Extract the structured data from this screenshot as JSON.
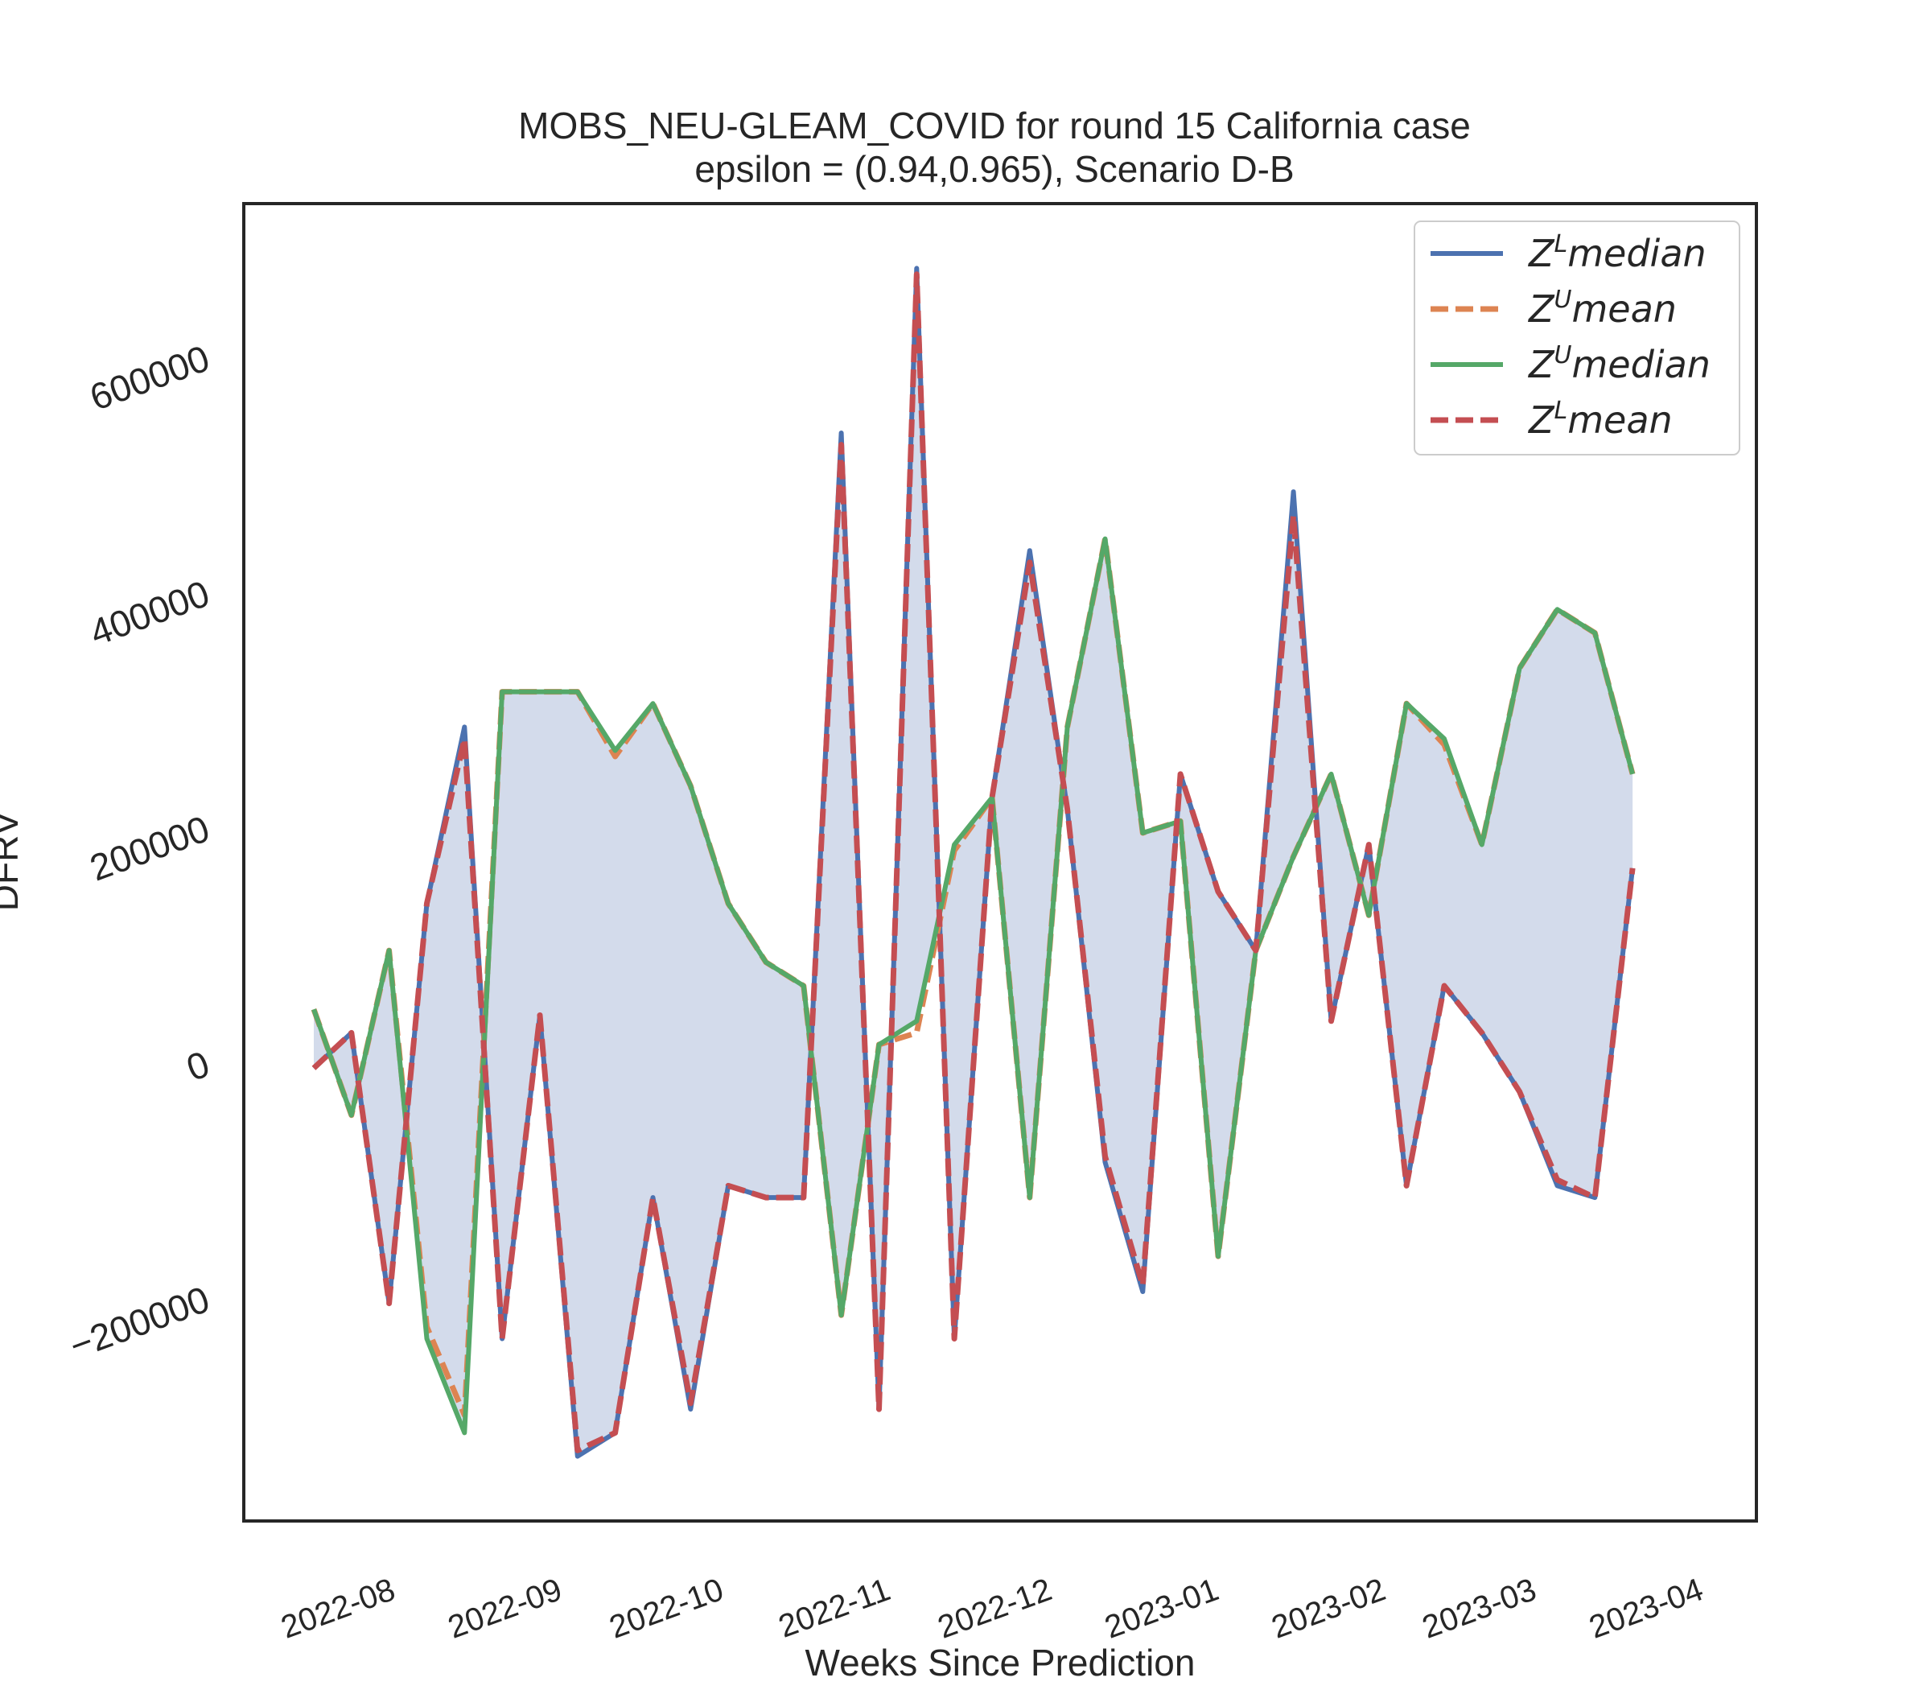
{
  "chart_data": {
    "type": "line",
    "title": "MOBS_NEU-GLEAM_COVID for round 15 California  case",
    "subtitle": "epsilon = (0.94,0.965), Scenario D-B",
    "xlabel": "Weeks Since Prediction",
    "ylabel": "DFRV",
    "xlim": [
      "2022-07-05",
      "2023-04-12"
    ],
    "ylim": [
      -390000,
      730000
    ],
    "x_ticks": [
      "2022-08",
      "2022-09",
      "2022-10",
      "2022-11",
      "2022-12",
      "2023-01",
      "2023-02",
      "2023-03",
      "2023-04"
    ],
    "y_ticks": [
      {
        "value": -200000,
        "label": "−200000"
      },
      {
        "value": 0,
        "label": "0"
      },
      {
        "value": 200000,
        "label": "200000"
      },
      {
        "value": 400000,
        "label": "400000"
      },
      {
        "value": 600000,
        "label": "600000"
      }
    ],
    "x": [
      "2022-07-18",
      "2022-07-25",
      "2022-08-01",
      "2022-08-08",
      "2022-08-15",
      "2022-08-22",
      "2022-08-29",
      "2022-09-05",
      "2022-09-12",
      "2022-09-19",
      "2022-09-26",
      "2022-10-03",
      "2022-10-10",
      "2022-10-17",
      "2022-10-24",
      "2022-10-31",
      "2022-11-07",
      "2022-11-14",
      "2022-11-21",
      "2022-11-28",
      "2022-12-05",
      "2022-12-12",
      "2022-12-19",
      "2022-12-26",
      "2023-01-02",
      "2023-01-09",
      "2023-01-16",
      "2023-01-23",
      "2023-01-30",
      "2023-02-06",
      "2023-02-13",
      "2023-02-20",
      "2023-02-27",
      "2023-03-06",
      "2023-03-13",
      "2023-03-20"
    ],
    "series": [
      {
        "name": "median",
        "label_sup": "L",
        "color": "#4c72b0",
        "dash": "solid",
        "values": [
          -5000,
          25000,
          -205000,
          135000,
          285000,
          -235000,
          40000,
          -335000,
          -315000,
          -115000,
          -295000,
          -105000,
          -115000,
          -115000,
          535000,
          -295000,
          675000,
          -235000,
          225000,
          435000,
          215000,
          -85000,
          -195000,
          245000,
          145000,
          95000,
          485000,
          35000,
          185000,
          -105000,
          65000,
          25000,
          -25000,
          -105000,
          -115000,
          165000
        ]
      },
      {
        "name": "mean",
        "label_sup": "U",
        "color": "#dd8452",
        "dash": "dashed",
        "values": [
          45000,
          -45000,
          95000,
          -225000,
          -300000,
          315000,
          315000,
          315000,
          260000,
          305000,
          235000,
          135000,
          85000,
          65000,
          -215000,
          15000,
          25000,
          180000,
          225000,
          -115000,
          285000,
          445000,
          195000,
          205000,
          -165000,
          95000,
          175000,
          245000,
          125000,
          305000,
          270000,
          185000,
          335000,
          385000,
          365000,
          245000
        ]
      },
      {
        "name": "median",
        "label_sup": "U",
        "color": "#55a868",
        "dash": "solid",
        "values": [
          45000,
          -45000,
          95000,
          -235000,
          -315000,
          315000,
          315000,
          315000,
          265000,
          305000,
          235000,
          135000,
          85000,
          65000,
          -215000,
          15000,
          35000,
          185000,
          225000,
          -115000,
          285000,
          445000,
          195000,
          205000,
          -165000,
          95000,
          175000,
          245000,
          125000,
          305000,
          275000,
          185000,
          335000,
          385000,
          365000,
          245000
        ]
      },
      {
        "name": "mean",
        "label_sup": "L",
        "color": "#c44e52",
        "dash": "dashed",
        "values": [
          -5000,
          25000,
          -205000,
          135000,
          275000,
          -235000,
          40000,
          -330000,
          -315000,
          -115000,
          -290000,
          -105000,
          -115000,
          -115000,
          525000,
          -295000,
          670000,
          -235000,
          225000,
          425000,
          215000,
          -80000,
          -190000,
          245000,
          145000,
          95000,
          465000,
          35000,
          185000,
          -105000,
          65000,
          25000,
          -25000,
          -100000,
          -115000,
          165000
        ]
      }
    ],
    "fill_between": {
      "lower_series": 0,
      "upper_series": 2,
      "color": "#c2cde3",
      "alpha": 0.72
    },
    "legend": {
      "placement": "top-right",
      "entries": [
        {
          "base": "Z",
          "sup": "L",
          "rest": "median"
        },
        {
          "base": "Z",
          "sup": "U",
          "rest": "mean"
        },
        {
          "base": "Z",
          "sup": "U",
          "rest": "median"
        },
        {
          "base": "Z",
          "sup": "L",
          "rest": "mean"
        }
      ]
    },
    "grid": false
  }
}
